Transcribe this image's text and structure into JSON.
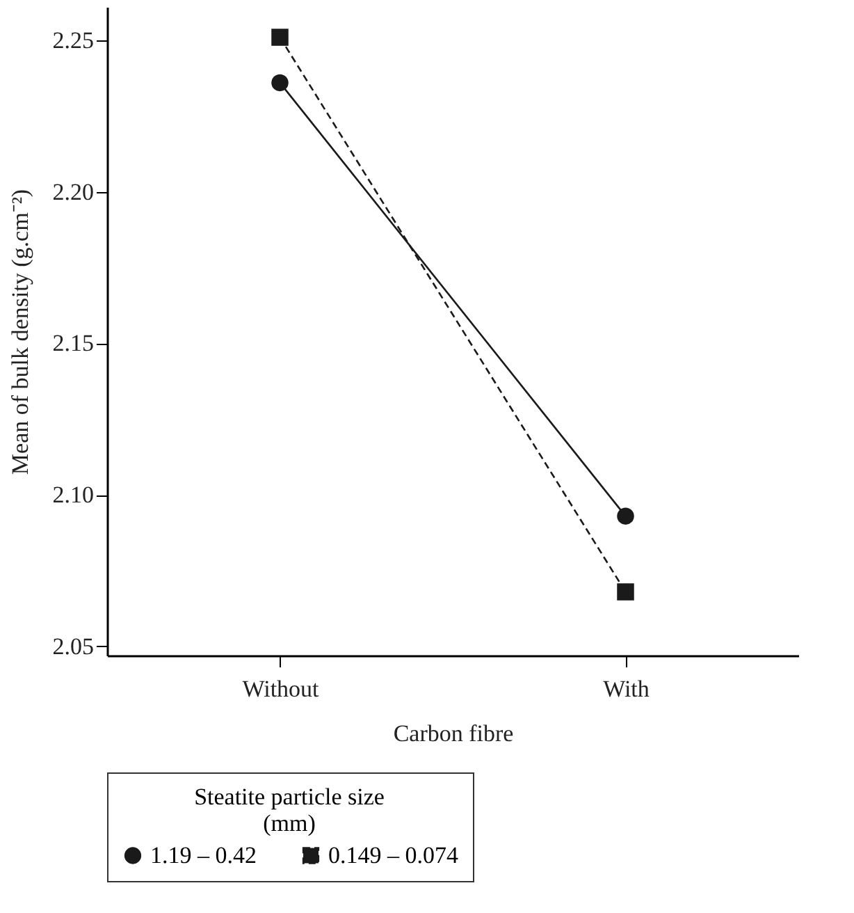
{
  "chart_data": {
    "type": "line",
    "xlabel": "Carbon fibre",
    "ylabel": "Mean of bulk density (g.cm⁻²)",
    "legend_title": "Steatite particle size (mm)",
    "legend": "bottom",
    "grid": false,
    "categories": [
      "Without",
      "With"
    ],
    "ylim": [
      2.047,
      2.261
    ],
    "yticks": [
      2.05,
      {
        "value": 2.1,
        "label": "2.10"
      },
      2.15,
      {
        "value": 2.2,
        "label": "2.20"
      },
      2.25
    ],
    "series": [
      {
        "name": "1.19 – 0.42",
        "color": "#1a1a1a",
        "marker": "circle",
        "line_style": "solid",
        "values": [
          2.236,
          2.093
        ]
      },
      {
        "name": "0.149 – 0.074",
        "color": "#1a1a1a",
        "marker": "square",
        "line_style": "dashed",
        "values": [
          2.251,
          2.068
        ]
      }
    ]
  }
}
